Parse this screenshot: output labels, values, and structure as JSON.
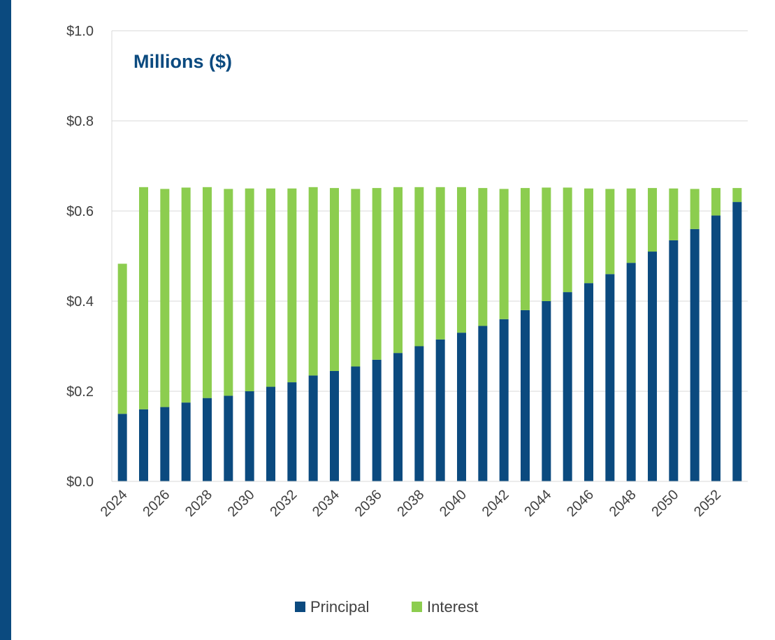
{
  "chart_data": {
    "type": "bar",
    "stacked": true,
    "title": "Millions ($)",
    "xlabel": "",
    "ylabel": "",
    "ylim": [
      0,
      1.0
    ],
    "y_ticks": [
      "$0.0",
      "$0.2",
      "$0.4",
      "$0.6",
      "$0.8",
      "$1.0"
    ],
    "y_tick_values": [
      0,
      0.2,
      0.4,
      0.6,
      0.8,
      1.0
    ],
    "categories": [
      "2024",
      "2025",
      "2026",
      "2027",
      "2028",
      "2029",
      "2030",
      "2031",
      "2032",
      "2033",
      "2034",
      "2035",
      "2036",
      "2037",
      "2038",
      "2039",
      "2040",
      "2041",
      "2042",
      "2043",
      "2044",
      "2045",
      "2046",
      "2047",
      "2048",
      "2049",
      "2050",
      "2051",
      "2052",
      "2053"
    ],
    "x_tick_labels": [
      "2024",
      "2026",
      "2028",
      "2030",
      "2032",
      "2034",
      "2036",
      "2038",
      "2040",
      "2042",
      "2044",
      "2046",
      "2048",
      "2050",
      "2052"
    ],
    "series": [
      {
        "name": "Principal",
        "color": "#0b4a7f",
        "values": [
          0.15,
          0.16,
          0.165,
          0.175,
          0.185,
          0.19,
          0.2,
          0.21,
          0.22,
          0.235,
          0.245,
          0.255,
          0.27,
          0.285,
          0.3,
          0.315,
          0.33,
          0.345,
          0.36,
          0.38,
          0.4,
          0.42,
          0.44,
          0.46,
          0.485,
          0.51,
          0.535,
          0.56,
          0.59,
          0.62
        ]
      },
      {
        "name": "Interest",
        "color": "#8ccd4f",
        "values": [
          0.333,
          0.493,
          0.484,
          0.477,
          0.468,
          0.459,
          0.45,
          0.44,
          0.43,
          0.418,
          0.406,
          0.394,
          0.381,
          0.368,
          0.353,
          0.338,
          0.323,
          0.306,
          0.289,
          0.271,
          0.252,
          0.232,
          0.21,
          0.189,
          0.165,
          0.141,
          0.115,
          0.089,
          0.061,
          0.031
        ]
      }
    ],
    "grid": true,
    "legend": "bottom"
  }
}
